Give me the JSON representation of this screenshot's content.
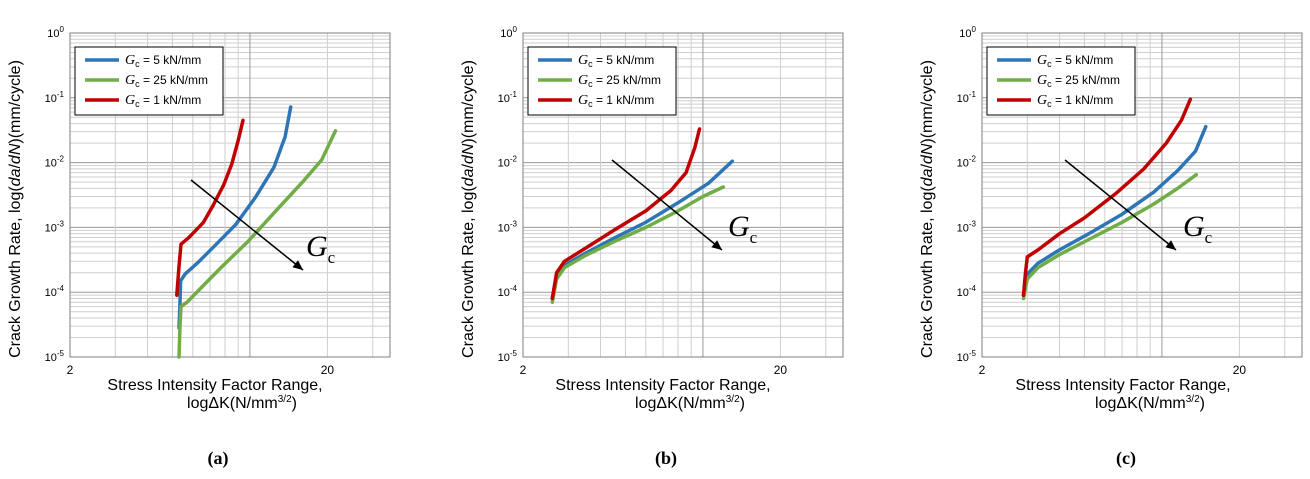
{
  "chart_data": [
    {
      "type": "line",
      "panel_label": "(a)",
      "ylabel_parts": [
        "Crack Growth Rate,  log(",
        "da",
        "/",
        "dN",
        ")(mm/cycle)"
      ],
      "xlabel_line1": "Stress Intensity  Factor Range,",
      "xlabel_line2_main": "logΔK(N/mm",
      "xlabel_line2_sup": "3/2",
      "xlabel_line2_end": ")",
      "x_scale": "log",
      "y_scale": "log",
      "xlim": [
        2,
        35
      ],
      "ylim": [
        1e-05,
        1
      ],
      "x_tick_labels": [
        {
          "value": 2,
          "label": "2"
        },
        {
          "value": 20,
          "label": "20"
        }
      ],
      "y_tick_labels": [
        {
          "value": 1,
          "base": "10",
          "exp": "0"
        },
        {
          "value": 0.1,
          "base": "10",
          "exp": "-1"
        },
        {
          "value": 0.01,
          "base": "10",
          "exp": "-2"
        },
        {
          "value": 0.001,
          "base": "10",
          "exp": "-3"
        },
        {
          "value": 0.0001,
          "base": "10",
          "exp": "-4"
        },
        {
          "value": 1e-05,
          "base": "10",
          "exp": "-5"
        }
      ],
      "grid": true,
      "legend_position": "top-left",
      "series": [
        {
          "name_symbol": "G",
          "name_sub": "c",
          "name_rest": " = 5 kN/mm",
          "color": "#2e75b6",
          "x": [
            5.3,
            5.35,
            5.38,
            5.6,
            6.3,
            7.4,
            8.8,
            10.5,
            12.4,
            13.7,
            14.4
          ],
          "y": [
            2.8e-05,
            7e-05,
            0.00015,
            0.00019,
            0.00029,
            0.00055,
            0.0011,
            0.0029,
            0.0085,
            0.025,
            0.072
          ]
        },
        {
          "name_symbol": "G",
          "name_sub": "c",
          "name_rest": " = 25 kN/mm",
          "color": "#70ad47",
          "x": [
            5.3,
            5.35,
            5.4,
            5.7,
            6.5,
            7.8,
            9.8,
            12.6,
            16.0,
            19.0,
            21.5
          ],
          "y": [
            1e-05,
            3e-05,
            6e-05,
            7e-05,
            0.00012,
            0.00025,
            0.0006,
            0.0018,
            0.005,
            0.011,
            0.031
          ]
        },
        {
          "name_symbol": "G",
          "name_sub": "c",
          "name_rest": " = 1 kN/mm",
          "color": "#c00000",
          "x": [
            5.2,
            5.3,
            5.4,
            5.8,
            6.6,
            7.2,
            7.9,
            8.5,
            9.0,
            9.4
          ],
          "y": [
            9e-05,
            0.00025,
            0.00055,
            0.0007,
            0.0012,
            0.0022,
            0.0045,
            0.0095,
            0.022,
            0.045
          ]
        }
      ],
      "annotation": {
        "symbol": "G",
        "sub": "c"
      }
    },
    {
      "type": "line",
      "panel_label": "(b)",
      "ylabel_parts": [
        "Crack Growth Rate,  log(",
        "da",
        "/",
        "dN",
        ")(mm/cycle)"
      ],
      "xlabel_line1": "Stress Intensity  Factor Range,",
      "xlabel_line2_main": "logΔK(N/mm",
      "xlabel_line2_sup": "3/2",
      "xlabel_line2_end": ")",
      "x_scale": "log",
      "y_scale": "log",
      "xlim": [
        2,
        35
      ],
      "ylim": [
        1e-05,
        1
      ],
      "x_tick_labels": [
        {
          "value": 2,
          "label": "2"
        },
        {
          "value": 20,
          "label": "20"
        }
      ],
      "y_tick_labels": [
        {
          "value": 1,
          "base": "10",
          "exp": "0"
        },
        {
          "value": 0.1,
          "base": "10",
          "exp": "-1"
        },
        {
          "value": 0.01,
          "base": "10",
          "exp": "-2"
        },
        {
          "value": 0.001,
          "base": "10",
          "exp": "-3"
        },
        {
          "value": 0.0001,
          "base": "10",
          "exp": "-4"
        },
        {
          "value": 1e-05,
          "base": "10",
          "exp": "-5"
        }
      ],
      "grid": true,
      "legend_position": "top-left",
      "series": [
        {
          "name_symbol": "G",
          "name_sub": "c",
          "name_rest": " = 5 kN/mm",
          "color": "#2e75b6",
          "x": [
            2.6,
            2.7,
            2.9,
            3.5,
            4.5,
            6.0,
            8.0,
            10.5,
            13.0
          ],
          "y": [
            8e-05,
            0.00018,
            0.00026,
            0.0004,
            0.00068,
            0.0012,
            0.0024,
            0.0048,
            0.0105
          ]
        },
        {
          "name_symbol": "G",
          "name_sub": "c",
          "name_rest": " = 25 kN/mm",
          "color": "#70ad47",
          "x": [
            2.6,
            2.7,
            2.9,
            3.5,
            4.5,
            6.0,
            8.0,
            10.0,
            12.0
          ],
          "y": [
            7e-05,
            0.00016,
            0.00024,
            0.00037,
            0.0006,
            0.001,
            0.0018,
            0.003,
            0.0042
          ]
        },
        {
          "name_symbol": "G",
          "name_sub": "c",
          "name_rest": " = 1 kN/mm",
          "color": "#c00000",
          "x": [
            2.6,
            2.7,
            2.9,
            3.5,
            4.5,
            6.0,
            7.5,
            8.6,
            9.3,
            9.7
          ],
          "y": [
            8e-05,
            0.0002,
            0.0003,
            0.00048,
            0.0009,
            0.0018,
            0.0037,
            0.007,
            0.017,
            0.033
          ]
        }
      ],
      "annotation": {
        "symbol": "G",
        "sub": "c"
      }
    },
    {
      "type": "line",
      "panel_label": "(c)",
      "ylabel_parts": [
        "Crack Growth Rate,  log(",
        "da",
        "/",
        "dN",
        ")(mm/cycle)"
      ],
      "xlabel_line1": "Stress Intensity  Factor Range,",
      "xlabel_line2_main": "logΔK(N/mm",
      "xlabel_line2_sup": "3/2",
      "xlabel_line2_end": ")",
      "x_scale": "log",
      "y_scale": "log",
      "xlim": [
        2,
        35
      ],
      "ylim": [
        1e-05,
        1
      ],
      "x_tick_labels": [
        {
          "value": 2,
          "label": "2"
        },
        {
          "value": 20,
          "label": "20"
        }
      ],
      "y_tick_labels": [
        {
          "value": 1,
          "base": "10",
          "exp": "0"
        },
        {
          "value": 0.1,
          "base": "10",
          "exp": "-1"
        },
        {
          "value": 0.01,
          "base": "10",
          "exp": "-2"
        },
        {
          "value": 0.001,
          "base": "10",
          "exp": "-3"
        },
        {
          "value": 0.0001,
          "base": "10",
          "exp": "-4"
        },
        {
          "value": 1e-05,
          "base": "10",
          "exp": "-5"
        }
      ],
      "grid": true,
      "legend_position": "top-left",
      "series": [
        {
          "name_symbol": "G",
          "name_sub": "c",
          "name_rest": " = 5 kN/mm",
          "color": "#2e75b6",
          "x": [
            2.9,
            3.0,
            3.3,
            4.0,
            5.2,
            7.0,
            9.3,
            11.5,
            13.5,
            14.8
          ],
          "y": [
            9e-05,
            0.00019,
            0.00028,
            0.00045,
            0.0008,
            0.0016,
            0.0035,
            0.0075,
            0.015,
            0.036
          ]
        },
        {
          "name_symbol": "G",
          "name_sub": "c",
          "name_rest": " = 25 kN/mm",
          "color": "#70ad47",
          "x": [
            2.9,
            3.0,
            3.3,
            4.0,
            5.2,
            7.0,
            9.3,
            11.5,
            13.6
          ],
          "y": [
            8e-05,
            0.00016,
            0.00024,
            0.00038,
            0.00065,
            0.0012,
            0.0023,
            0.004,
            0.0065
          ]
        },
        {
          "name_symbol": "G",
          "name_sub": "c",
          "name_rest": " = 1 kN/mm",
          "color": "#c00000",
          "x": [
            2.9,
            2.95,
            3.0,
            3.3,
            4.0,
            5.0,
            6.6,
            8.5,
            10.4,
            11.9,
            12.9
          ],
          "y": [
            9e-05,
            0.0002,
            0.00035,
            0.00045,
            0.0008,
            0.0014,
            0.0033,
            0.008,
            0.02,
            0.045,
            0.095
          ]
        }
      ],
      "annotation": {
        "symbol": "G",
        "sub": "c"
      }
    }
  ]
}
